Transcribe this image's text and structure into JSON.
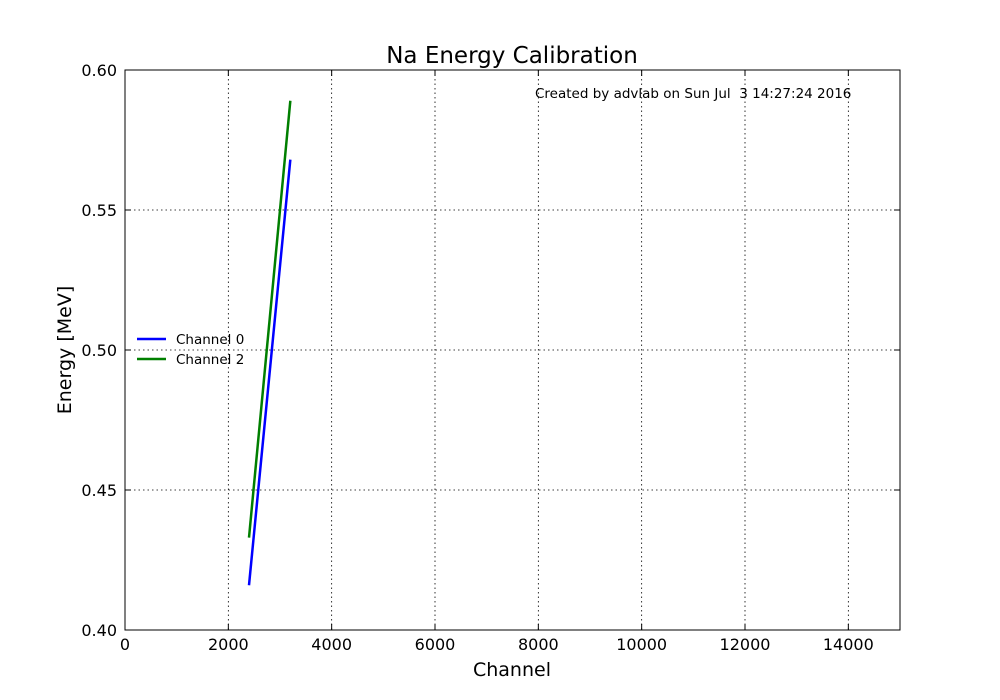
{
  "chart_data": {
    "type": "line",
    "title": "Na Energy Calibration",
    "xlabel": "Channel",
    "ylabel": "Energy [MeV]",
    "xlim": [
      0,
      15000
    ],
    "ylim": [
      0.4,
      0.6
    ],
    "xticks": [
      0,
      2000,
      4000,
      6000,
      8000,
      10000,
      12000,
      14000
    ],
    "yticks": [
      0.4,
      0.45,
      0.5,
      0.55,
      0.6
    ],
    "xtick_labels": [
      "0",
      "2000",
      "4000",
      "6000",
      "8000",
      "10000",
      "12000",
      "14000"
    ],
    "ytick_labels": [
      "0.40",
      "0.45",
      "0.50",
      "0.55",
      "0.60"
    ],
    "grid": true,
    "legend_position": "center-left",
    "annotation": "Created by advlab on Sun Jul  3 14:27:24 2016",
    "series": [
      {
        "name": "Channel 0",
        "color": "#0000ff",
        "x": [
          2400,
          3200
        ],
        "y": [
          0.416,
          0.568
        ]
      },
      {
        "name": "Channel 2",
        "color": "#007f00",
        "x": [
          2400,
          3200
        ],
        "y": [
          0.433,
          0.589
        ]
      }
    ]
  }
}
